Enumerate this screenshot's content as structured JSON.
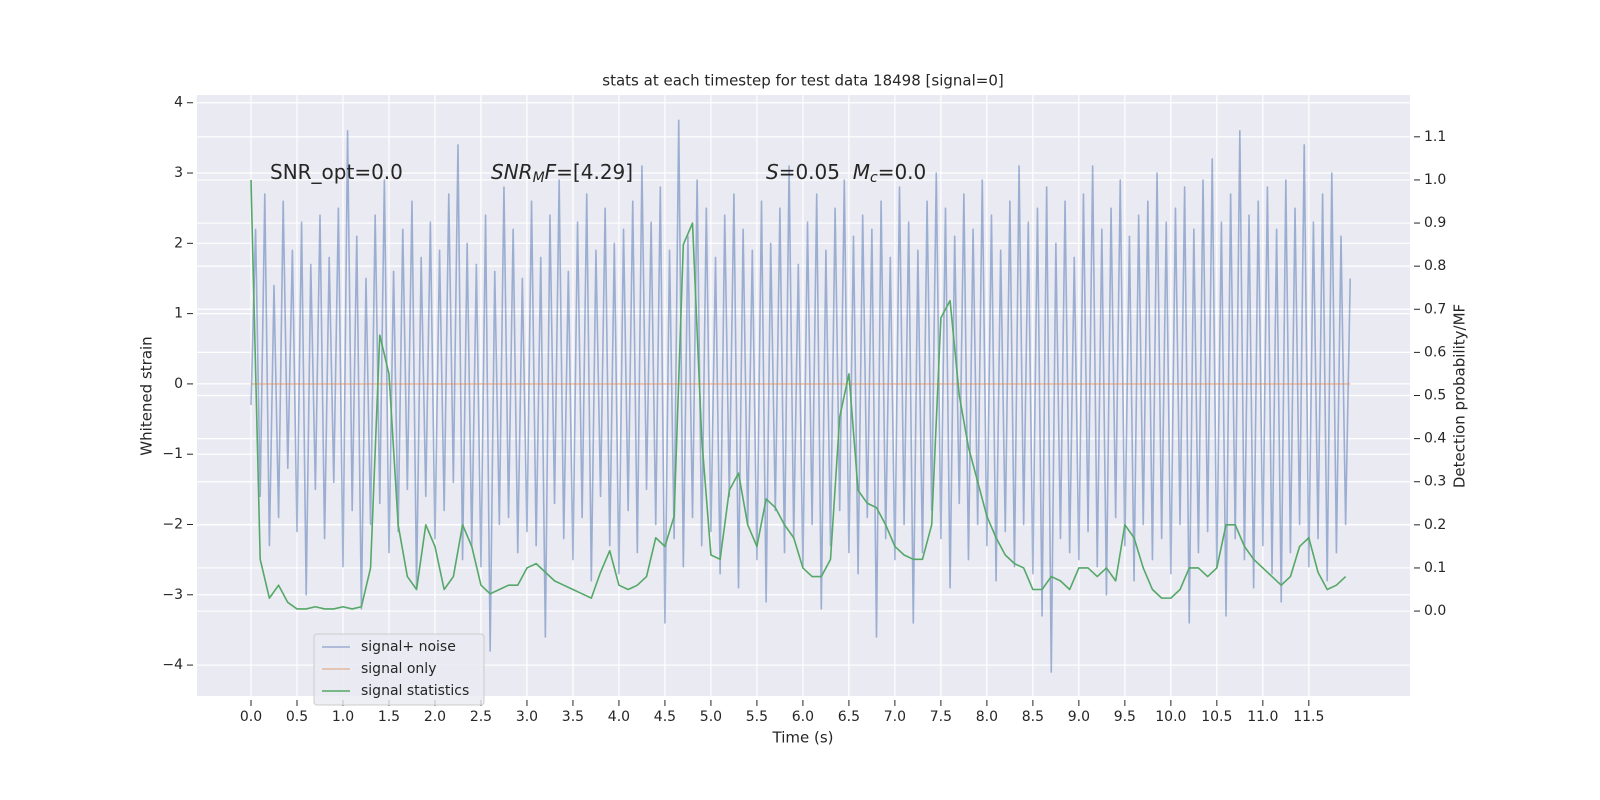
{
  "chart_data": {
    "type": "line",
    "title": "stats at each timestep for test data 18498 [signal=0]",
    "xlabel": "Time (s)",
    "ylabel": "Whitened strain",
    "y2label": "Detection probability/MF",
    "annotations": [
      [
        "SNR_opt=0.0"
      ],
      [
        "SNR",
        "M",
        "F",
        "=[4.29]"
      ],
      [
        "S",
        "=0.05  ",
        "M",
        "c",
        "=0.0"
      ]
    ],
    "xlim": [
      -0.587,
      12.6
    ],
    "ylim": [
      -4.44,
      4.11
    ],
    "y2lim": [
      -0.197,
      1.197
    ],
    "xticks": [
      {
        "value": 0,
        "label": "0.0"
      },
      0.5,
      {
        "value": 1,
        "label": "1.0"
      },
      1.5,
      {
        "value": 2,
        "label": "2.0"
      },
      2.5,
      {
        "value": 3,
        "label": "3.0"
      },
      3.5,
      {
        "value": 4,
        "label": "4.0"
      },
      4.5,
      {
        "value": 5,
        "label": "5.0"
      },
      5.5,
      {
        "value": 6,
        "label": "6.0"
      },
      6.5,
      {
        "value": 7,
        "label": "7.0"
      },
      7.5,
      {
        "value": 8,
        "label": "8.0"
      },
      8.5,
      {
        "value": 9,
        "label": "9.0"
      },
      9.5,
      {
        "value": 10,
        "label": "10.0"
      },
      10.5,
      {
        "value": 11,
        "label": "11.0"
      },
      11.5
    ],
    "yticks": [
      {
        "value": -4,
        "label": "−4"
      },
      {
        "value": -3,
        "label": "−3"
      },
      {
        "value": -2,
        "label": "−2"
      },
      {
        "value": -1,
        "label": "−1"
      },
      0,
      1,
      2,
      3,
      4
    ],
    "y2ticks": [
      {
        "value": 0,
        "label": "0.0"
      },
      0.1,
      0.2,
      0.3,
      0.4,
      0.5,
      0.6,
      0.7,
      0.8,
      0.9,
      {
        "value": 1,
        "label": "1.0"
      },
      1.1
    ],
    "grid": true,
    "legend": "lower left",
    "series": [
      {
        "name": "signal+ noise",
        "color": "#4c72b0",
        "opacity": 0.5,
        "x": [
          0,
          0.05,
          0.1,
          0.15,
          0.2,
          0.25,
          0.3,
          0.35,
          0.4,
          0.45,
          0.5,
          0.55,
          0.6,
          0.65,
          0.7,
          0.75,
          0.8,
          0.85,
          0.9,
          0.95,
          1,
          1.05,
          1.1,
          1.15,
          1.2,
          1.25,
          1.3,
          1.35,
          1.4,
          1.45,
          1.5,
          1.55,
          1.6,
          1.65,
          1.7,
          1.75,
          1.8,
          1.85,
          1.9,
          1.95,
          2,
          2.05,
          2.1,
          2.15,
          2.2,
          2.25,
          2.3,
          2.35,
          2.4,
          2.45,
          2.5,
          2.55,
          2.6,
          2.65,
          2.7,
          2.75,
          2.8,
          2.85,
          2.9,
          2.95,
          3,
          3.05,
          3.1,
          3.15,
          3.2,
          3.25,
          3.3,
          3.35,
          3.4,
          3.45,
          3.5,
          3.55,
          3.6,
          3.65,
          3.7,
          3.75,
          3.8,
          3.85,
          3.9,
          3.95,
          4,
          4.05,
          4.1,
          4.15,
          4.2,
          4.25,
          4.3,
          4.35,
          4.4,
          4.45,
          4.5,
          4.55,
          4.6,
          4.65,
          4.7,
          4.75,
          4.8,
          4.85,
          4.9,
          4.95,
          5,
          5.05,
          5.1,
          5.15,
          5.2,
          5.25,
          5.3,
          5.35,
          5.4,
          5.45,
          5.5,
          5.55,
          5.6,
          5.65,
          5.7,
          5.75,
          5.8,
          5.85,
          5.9,
          5.95,
          6,
          6.05,
          6.1,
          6.15,
          6.2,
          6.25,
          6.3,
          6.35,
          6.4,
          6.45,
          6.5,
          6.55,
          6.6,
          6.65,
          6.7,
          6.75,
          6.8,
          6.85,
          6.9,
          6.95,
          7,
          7.05,
          7.1,
          7.15,
          7.2,
          7.25,
          7.3,
          7.35,
          7.4,
          7.45,
          7.5,
          7.55,
          7.6,
          7.65,
          7.7,
          7.75,
          7.8,
          7.85,
          7.9,
          7.95,
          8,
          8.05,
          8.1,
          8.15,
          8.2,
          8.25,
          8.3,
          8.35,
          8.4,
          8.45,
          8.5,
          8.55,
          8.6,
          8.65,
          8.7,
          8.75,
          8.8,
          8.85,
          8.9,
          8.95,
          9,
          9.05,
          9.1,
          9.15,
          9.2,
          9.25,
          9.3,
          9.35,
          9.4,
          9.45,
          9.5,
          9.55,
          9.6,
          9.65,
          9.7,
          9.75,
          9.8,
          9.85,
          9.9,
          9.95,
          10,
          10.05,
          10.1,
          10.15,
          10.2,
          10.25,
          10.3,
          10.35,
          10.4,
          10.45,
          10.5,
          10.55,
          10.6,
          10.65,
          10.7,
          10.75,
          10.8,
          10.85,
          10.9,
          10.95,
          11,
          11.05,
          11.1,
          11.15,
          11.2,
          11.25,
          11.3,
          11.35,
          11.4,
          11.45,
          11.5,
          11.55,
          11.6,
          11.65,
          11.7,
          11.75,
          11.8,
          11.85,
          11.9,
          11.95
        ],
        "values": [
          -0.3,
          2.2,
          -1.6,
          2.7,
          -2.3,
          1.4,
          -1.9,
          2.6,
          -1.2,
          1.9,
          -2.1,
          2.3,
          -3.0,
          1.7,
          -1.5,
          2.4,
          -2.2,
          1.8,
          -1.4,
          2.5,
          -2.6,
          3.6,
          -1.8,
          2.1,
          -3.2,
          1.5,
          -2.0,
          2.4,
          -1.7,
          2.9,
          -2.4,
          1.6,
          -2.1,
          2.2,
          -1.5,
          2.6,
          -2.9,
          1.8,
          -1.6,
          2.3,
          -2.2,
          1.9,
          -1.8,
          2.7,
          -1.4,
          3.4,
          -2.5,
          2.0,
          -2.3,
          1.7,
          -2.6,
          2.4,
          -3.8,
          1.6,
          -2.0,
          2.8,
          -1.9,
          2.2,
          -2.4,
          1.5,
          -2.1,
          2.6,
          -2.3,
          1.8,
          -3.6,
          2.4,
          -1.7,
          2.9,
          -2.2,
          1.6,
          -2.5,
          2.3,
          -1.9,
          2.7,
          -2.8,
          1.9,
          -1.6,
          2.5,
          -2.3,
          2.0,
          -2.7,
          2.2,
          -1.8,
          2.6,
          -2.4,
          3.1,
          -1.5,
          2.3,
          -2.0,
          2.8,
          -3.4,
          1.9,
          -2.2,
          3.75,
          -2.6,
          2.1,
          -1.9,
          2.9,
          -2.3,
          2.5,
          -2.1,
          1.8,
          -2.7,
          2.4,
          -1.6,
          2.7,
          -2.9,
          2.2,
          -2.0,
          1.9,
          -2.5,
          2.6,
          -3.1,
          2.0,
          -1.8,
          2.5,
          -2.4,
          3.1,
          -2.2,
          1.7,
          -2.6,
          2.3,
          -2.0,
          2.7,
          -3.2,
          1.9,
          -2.3,
          2.5,
          -1.8,
          2.9,
          -2.4,
          2.1,
          -2.7,
          2.4,
          -1.9,
          2.2,
          -3.6,
          2.6,
          -2.2,
          1.8,
          -2.5,
          2.8,
          -2.0,
          2.3,
          -3.4,
          1.9,
          -2.4,
          2.6,
          -1.8,
          3.0,
          -2.2,
          2.5,
          -2.9,
          2.1,
          -1.7,
          2.7,
          -2.5,
          2.2,
          -2.0,
          2.9,
          -2.3,
          2.4,
          -2.8,
          1.9,
          -2.1,
          2.6,
          -2.6,
          3.1,
          -2.0,
          2.3,
          -2.7,
          2.5,
          -3.3,
          2.8,
          -4.1,
          2.0,
          -2.2,
          2.6,
          -2.4,
          1.8,
          -2.5,
          2.7,
          -2.1,
          3.1,
          -2.6,
          2.2,
          -3.0,
          2.5,
          -1.9,
          2.9,
          -2.3,
          2.1,
          -2.8,
          2.4,
          -2.0,
          2.6,
          -2.5,
          3.0,
          -2.2,
          2.3,
          -2.7,
          2.5,
          -2.0,
          2.8,
          -3.4,
          2.2,
          -2.4,
          2.9,
          -2.1,
          3.2,
          -2.6,
          2.3,
          -3.3,
          2.7,
          -2.2,
          3.6,
          -2.5,
          2.4,
          -2.9,
          2.6,
          -2.3,
          2.8,
          -2.7,
          2.2,
          -3.1,
          2.9,
          -2.4,
          2.5,
          -2.0,
          3.4,
          -2.6,
          2.3,
          -2.2,
          2.7,
          -2.8,
          3.0,
          -2.4,
          2.1,
          -2.0,
          1.5
        ]
      },
      {
        "name": "signal only",
        "color": "#dd8452",
        "opacity": 0.5,
        "x": [
          0,
          11.95
        ],
        "values": [
          0,
          0
        ]
      },
      {
        "name": "signal statistics",
        "color": "#55a868",
        "opacity": 1,
        "axis": "y2",
        "x": [
          0,
          0.1,
          0.2,
          0.3,
          0.4,
          0.5,
          0.6,
          0.7,
          0.8,
          0.9,
          1,
          1.1,
          1.2,
          1.3,
          1.4,
          1.5,
          1.6,
          1.7,
          1.8,
          1.9,
          2,
          2.1,
          2.2,
          2.3,
          2.4,
          2.5,
          2.6,
          2.7,
          2.8,
          2.9,
          3,
          3.1,
          3.2,
          3.3,
          3.4,
          3.5,
          3.6,
          3.7,
          3.8,
          3.9,
          4,
          4.1,
          4.2,
          4.3,
          4.4,
          4.5,
          4.6,
          4.7,
          4.8,
          4.9,
          5,
          5.1,
          5.2,
          5.3,
          5.4,
          5.5,
          5.6,
          5.7,
          5.8,
          5.9,
          6,
          6.1,
          6.2,
          6.3,
          6.4,
          6.5,
          6.6,
          6.7,
          6.8,
          6.9,
          7,
          7.1,
          7.2,
          7.3,
          7.4,
          7.5,
          7.6,
          7.7,
          7.8,
          7.9,
          8,
          8.1,
          8.2,
          8.3,
          8.4,
          8.5,
          8.6,
          8.7,
          8.8,
          8.9,
          9,
          9.1,
          9.2,
          9.3,
          9.4,
          9.5,
          9.6,
          9.7,
          9.8,
          9.9,
          10,
          10.1,
          10.2,
          10.3,
          10.4,
          10.5,
          10.6,
          10.7,
          10.8,
          10.9,
          11,
          11.1,
          11.2,
          11.3,
          11.4,
          11.5,
          11.6,
          11.7,
          11.8,
          11.9
        ],
        "values": [
          1.0,
          0.12,
          0.03,
          0.06,
          0.02,
          0.005,
          0.005,
          0.01,
          0.005,
          0.005,
          0.01,
          0.005,
          0.01,
          0.1,
          0.64,
          0.55,
          0.2,
          0.08,
          0.05,
          0.2,
          0.15,
          0.05,
          0.08,
          0.2,
          0.15,
          0.06,
          0.04,
          0.05,
          0.06,
          0.06,
          0.1,
          0.11,
          0.09,
          0.07,
          0.06,
          0.05,
          0.04,
          0.03,
          0.09,
          0.14,
          0.06,
          0.05,
          0.06,
          0.08,
          0.17,
          0.15,
          0.22,
          0.85,
          0.9,
          0.4,
          0.13,
          0.12,
          0.28,
          0.32,
          0.2,
          0.15,
          0.26,
          0.24,
          0.2,
          0.17,
          0.1,
          0.08,
          0.08,
          0.12,
          0.45,
          0.55,
          0.28,
          0.25,
          0.24,
          0.2,
          0.15,
          0.13,
          0.12,
          0.12,
          0.2,
          0.68,
          0.72,
          0.5,
          0.38,
          0.3,
          0.22,
          0.17,
          0.13,
          0.11,
          0.1,
          0.05,
          0.05,
          0.08,
          0.07,
          0.05,
          0.1,
          0.1,
          0.08,
          0.1,
          0.07,
          0.2,
          0.17,
          0.1,
          0.05,
          0.03,
          0.03,
          0.05,
          0.1,
          0.1,
          0.08,
          0.1,
          0.2,
          0.2,
          0.15,
          0.12,
          0.1,
          0.08,
          0.06,
          0.08,
          0.15,
          0.17,
          0.09,
          0.05,
          0.06,
          0.08
        ]
      }
    ]
  }
}
